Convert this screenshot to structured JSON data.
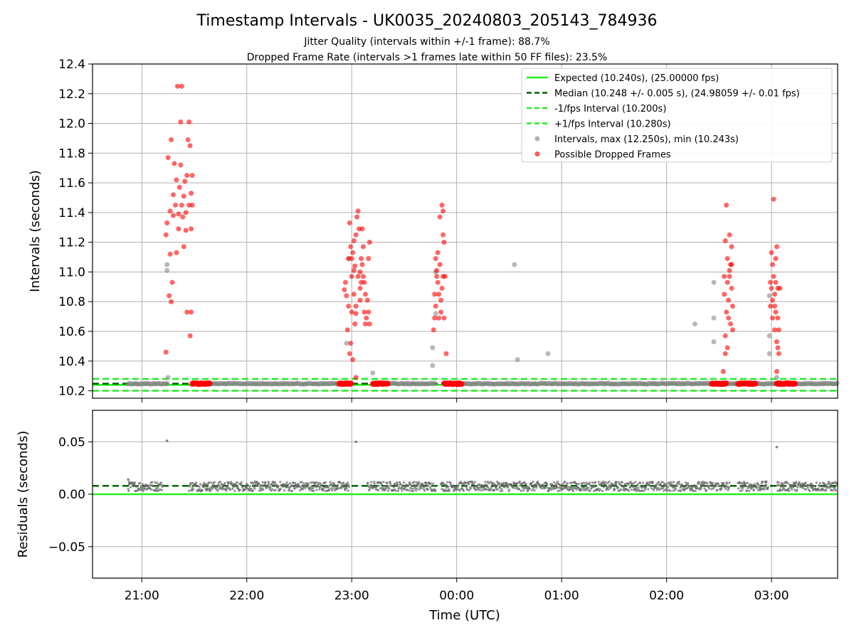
{
  "chart_data": [
    {
      "type": "scatter",
      "title": "Timestamp Intervals - UK0035_20240803_205143_784936",
      "subtitle_lines": [
        "Jitter Quality (intervals within +/-1 frame): 88.7%",
        "Dropped Frame Rate (intervals >1 frames late within 50 FF files): 23.5%"
      ],
      "ylabel": "Intervals (seconds)",
      "ylim": [
        10.15,
        12.4
      ],
      "yticks": [
        "10.2",
        "10.4",
        "10.6",
        "10.8",
        "11.0",
        "11.2",
        "11.4",
        "11.6",
        "11.8",
        "12.0",
        "12.2",
        "12.4"
      ],
      "xlim_hours": [
        20.53,
        27.63
      ],
      "grid": true,
      "legend_position": "top-right",
      "reference_lines": [
        {
          "name": "Expected (10.240s), (25.00000 fps)",
          "y": 10.24,
          "color": "#22ee22",
          "style": "solid"
        },
        {
          "name": "Median (10.248 +/- 0.005 s), (24.98059 +/- 0.01 fps)",
          "y": 10.248,
          "color": "#006400",
          "style": "dashed"
        },
        {
          "name": "-1/fps Interval (10.200s)",
          "y": 10.2,
          "color": "#22ee22",
          "style": "dashed"
        },
        {
          "name": "+1/fps Interval (10.280s)",
          "y": 10.28,
          "color": "#22ee22",
          "style": "dashed"
        }
      ],
      "series": [
        {
          "name": "Intervals, max (12.250s), min (10.243s)",
          "color": "#888888",
          "baseline_value": 10.248,
          "baseline_segments": [
            [
              20.87,
              21.25
            ],
            [
              21.5,
              22.95
            ],
            [
              23.3,
              23.8
            ],
            [
              24.0,
              27.63
            ]
          ],
          "points": [
            [
              21.24,
              11.05
            ],
            [
              21.24,
              11.01
            ],
            [
              21.25,
              10.29
            ],
            [
              22.95,
              10.52
            ],
            [
              22.97,
              11.09
            ],
            [
              23.2,
              10.32
            ],
            [
              23.77,
              10.49
            ],
            [
              23.77,
              10.37
            ],
            [
              23.8,
              10.72
            ],
            [
              23.8,
              11.0
            ],
            [
              24.55,
              11.05
            ],
            [
              24.58,
              10.41
            ],
            [
              24.87,
              10.45
            ],
            [
              26.27,
              10.65
            ],
            [
              26.45,
              10.93
            ],
            [
              26.45,
              10.69
            ],
            [
              26.45,
              10.53
            ],
            [
              26.98,
              10.84
            ],
            [
              26.98,
              10.57
            ],
            [
              26.98,
              10.45
            ],
            [
              27.05,
              10.29
            ]
          ]
        },
        {
          "name": "Possible Dropped Frames",
          "color": "#ff0000",
          "baseline_value": 10.248,
          "baseline_segments": [
            [
              21.48,
              21.65
            ],
            [
              22.88,
              23.0
            ],
            [
              23.2,
              23.35
            ],
            [
              23.88,
              24.05
            ],
            [
              26.43,
              26.57
            ],
            [
              26.68,
              26.85
            ],
            [
              27.05,
              27.23
            ]
          ],
          "points": [
            [
              21.23,
              11.25
            ],
            [
              21.23,
              10.46
            ],
            [
              21.24,
              11.33
            ],
            [
              21.25,
              11.77
            ],
            [
              21.26,
              10.84
            ],
            [
              21.27,
              11.41
            ],
            [
              21.27,
              11.12
            ],
            [
              21.28,
              10.8
            ],
            [
              21.28,
              11.89
            ],
            [
              21.29,
              10.93
            ],
            [
              21.3,
              11.52
            ],
            [
              21.3,
              11.38
            ],
            [
              21.31,
              11.73
            ],
            [
              21.32,
              11.45
            ],
            [
              21.33,
              11.13
            ],
            [
              21.33,
              11.62
            ],
            [
              21.34,
              12.25
            ],
            [
              21.35,
              11.29
            ],
            [
              21.35,
              11.39
            ],
            [
              21.36,
              11.57
            ],
            [
              21.37,
              12.01
            ],
            [
              21.37,
              11.72
            ],
            [
              21.38,
              11.45
            ],
            [
              21.38,
              12.25
            ],
            [
              21.39,
              11.37
            ],
            [
              21.4,
              11.51
            ],
            [
              21.4,
              11.17
            ],
            [
              21.41,
              11.61
            ],
            [
              21.42,
              11.28
            ],
            [
              21.42,
              11.4
            ],
            [
              21.43,
              10.73
            ],
            [
              21.43,
              11.65
            ],
            [
              21.44,
              11.89
            ],
            [
              21.45,
              11.45
            ],
            [
              21.45,
              12.01
            ],
            [
              21.46,
              10.57
            ],
            [
              21.46,
              11.85
            ],
            [
              21.47,
              11.53
            ],
            [
              21.47,
              10.73
            ],
            [
              21.47,
              11.29
            ],
            [
              21.48,
              11.65
            ],
            [
              21.48,
              11.45
            ],
            [
              22.93,
              10.88
            ],
            [
              22.94,
              10.93
            ],
            [
              22.95,
              10.84
            ],
            [
              22.96,
              10.61
            ],
            [
              22.97,
              10.77
            ],
            [
              22.97,
              11.09
            ],
            [
              22.98,
              10.45
            ],
            [
              22.99,
              10.52
            ],
            [
              23.0,
              10.73
            ],
            [
              23.0,
              10.97
            ],
            [
              23.01,
              10.41
            ],
            [
              23.02,
              11.01
            ],
            [
              23.02,
              10.85
            ],
            [
              23.03,
              10.65
            ],
            [
              23.04,
              10.77
            ],
            [
              23.04,
              10.72
            ],
            [
              22.98,
              11.33
            ],
            [
              22.99,
              11.17
            ],
            [
              23.0,
              11.09
            ],
            [
              23.01,
              11.13
            ],
            [
              23.02,
              11.21
            ],
            [
              23.03,
              11.04
            ],
            [
              23.04,
              11.25
            ],
            [
              23.05,
              11.37
            ],
            [
              23.06,
              11.41
            ],
            [
              23.07,
              11.29
            ],
            [
              23.08,
              11.0
            ],
            [
              23.08,
              10.89
            ],
            [
              23.09,
              10.93
            ],
            [
              23.1,
              11.05
            ],
            [
              23.11,
              10.97
            ],
            [
              23.11,
              11.17
            ],
            [
              23.12,
              10.73
            ],
            [
              23.13,
              10.65
            ],
            [
              23.13,
              10.85
            ],
            [
              23.14,
              10.69
            ],
            [
              23.15,
              10.81
            ],
            [
              23.16,
              11.09
            ],
            [
              23.16,
              10.73
            ],
            [
              23.17,
              11.2
            ],
            [
              23.17,
              10.65
            ],
            [
              23.09,
              11.09
            ],
            [
              23.1,
              11.29
            ],
            [
              23.06,
              10.97
            ],
            [
              23.08,
              10.81
            ],
            [
              23.12,
              10.93
            ],
            [
              23.04,
              10.29
            ],
            [
              23.78,
              10.61
            ],
            [
              23.79,
              10.85
            ],
            [
              23.79,
              10.69
            ],
            [
              23.8,
              11.09
            ],
            [
              23.8,
              10.77
            ],
            [
              23.81,
              10.97
            ],
            [
              23.82,
              11.13
            ],
            [
              23.82,
              10.93
            ],
            [
              23.83,
              10.85
            ],
            [
              23.84,
              11.37
            ],
            [
              23.84,
              11.05
            ],
            [
              23.85,
              10.81
            ],
            [
              23.85,
              10.73
            ],
            [
              23.86,
              11.45
            ],
            [
              23.86,
              10.89
            ],
            [
              23.87,
              11.25
            ],
            [
              23.87,
              10.97
            ],
            [
              23.88,
              10.69
            ],
            [
              23.88,
              11.2
            ],
            [
              23.89,
              10.97
            ],
            [
              23.9,
              10.45
            ],
            [
              23.81,
              11.01
            ],
            [
              23.83,
              10.69
            ],
            [
              23.87,
              11.41
            ],
            [
              26.54,
              10.33
            ],
            [
              26.55,
              10.97
            ],
            [
              26.55,
              10.85
            ],
            [
              26.56,
              11.21
            ],
            [
              26.56,
              10.45
            ],
            [
              26.57,
              10.73
            ],
            [
              26.57,
              11.45
            ],
            [
              26.58,
              11.09
            ],
            [
              26.58,
              10.93
            ],
            [
              26.59,
              10.81
            ],
            [
              26.59,
              10.69
            ],
            [
              26.6,
              11.25
            ],
            [
              26.6,
              10.97
            ],
            [
              26.61,
              11.05
            ],
            [
              26.61,
              10.65
            ],
            [
              26.62,
              10.89
            ],
            [
              26.62,
              11.17
            ],
            [
              26.63,
              10.61
            ],
            [
              26.63,
              10.77
            ],
            [
              26.56,
              10.57
            ],
            [
              26.58,
              10.49
            ],
            [
              26.6,
              11.01
            ],
            [
              26.62,
              11.05
            ],
            [
              26.99,
              10.93
            ],
            [
              26.99,
              10.77
            ],
            [
              27.0,
              11.13
            ],
            [
              27.0,
              10.89
            ],
            [
              27.01,
              11.05
            ],
            [
              27.01,
              10.69
            ],
            [
              27.02,
              11.49
            ],
            [
              27.02,
              10.97
            ],
            [
              27.03,
              10.85
            ],
            [
              27.03,
              10.61
            ],
            [
              27.04,
              10.93
            ],
            [
              27.04,
              10.73
            ],
            [
              27.05,
              10.53
            ],
            [
              27.05,
              11.17
            ],
            [
              27.06,
              10.89
            ],
            [
              27.06,
              10.69
            ],
            [
              27.07,
              10.61
            ],
            [
              27.07,
              10.45
            ],
            [
              27.08,
              10.89
            ],
            [
              27.05,
              10.33
            ],
            [
              27.03,
              10.77
            ],
            [
              27.04,
              11.09
            ],
            [
              27.06,
              10.49
            ],
            [
              27.01,
              10.81
            ]
          ]
        }
      ]
    },
    {
      "type": "scatter",
      "ylabel": "Residuals (seconds)",
      "xlabel": "Time (UTC)",
      "ylim": [
        -0.08,
        0.08
      ],
      "yticks": [
        "0.05",
        "0.00",
        "−0.05"
      ],
      "xticks": [
        "21:00",
        "22:00",
        "23:00",
        "00:00",
        "01:00",
        "02:00",
        "03:00"
      ],
      "xlim_hours": [
        20.53,
        27.63
      ],
      "grid": true,
      "reference_lines": [
        {
          "name": "Expected",
          "y": 0.0,
          "color": "#22ee22",
          "style": "solid"
        },
        {
          "name": "Median",
          "y": 0.008,
          "color": "#006400",
          "style": "dashed"
        }
      ],
      "series": [
        {
          "name": "Residuals",
          "color": "#666666",
          "band_center": 0.0075,
          "band_segments": [
            [
              20.87,
              21.2
            ],
            [
              21.45,
              22.98
            ],
            [
              23.15,
              23.8
            ],
            [
              23.85,
              26.6
            ],
            [
              26.68,
              26.97
            ],
            [
              27.05,
              27.63
            ]
          ],
          "points": [
            [
              20.87,
              0.014
            ],
            [
              20.88,
              0.01
            ],
            [
              21.24,
              0.051
            ],
            [
              23.04,
              0.05
            ],
            [
              26.95,
              0.012
            ],
            [
              27.05,
              0.045
            ]
          ]
        }
      ]
    }
  ],
  "legend_entries": [
    {
      "label": "Expected (10.240s), (25.00000 fps)",
      "kind": "line-solid",
      "color": "#22ee22"
    },
    {
      "label": "Median (10.248 +/- 0.005 s), (24.98059 +/- 0.01 fps)",
      "kind": "line-dashed",
      "color": "#006400"
    },
    {
      "label": "-1/fps Interval (10.200s)",
      "kind": "line-dashed",
      "color": "#22ee22"
    },
    {
      "label": "+1/fps Interval (10.280s)",
      "kind": "line-dashed",
      "color": "#22ee22"
    },
    {
      "label": "Intervals, max (12.250s), min (10.243s)",
      "kind": "marker",
      "color": "#888888"
    },
    {
      "label": "Possible Dropped Frames",
      "kind": "marker",
      "color": "#ff0000"
    }
  ]
}
